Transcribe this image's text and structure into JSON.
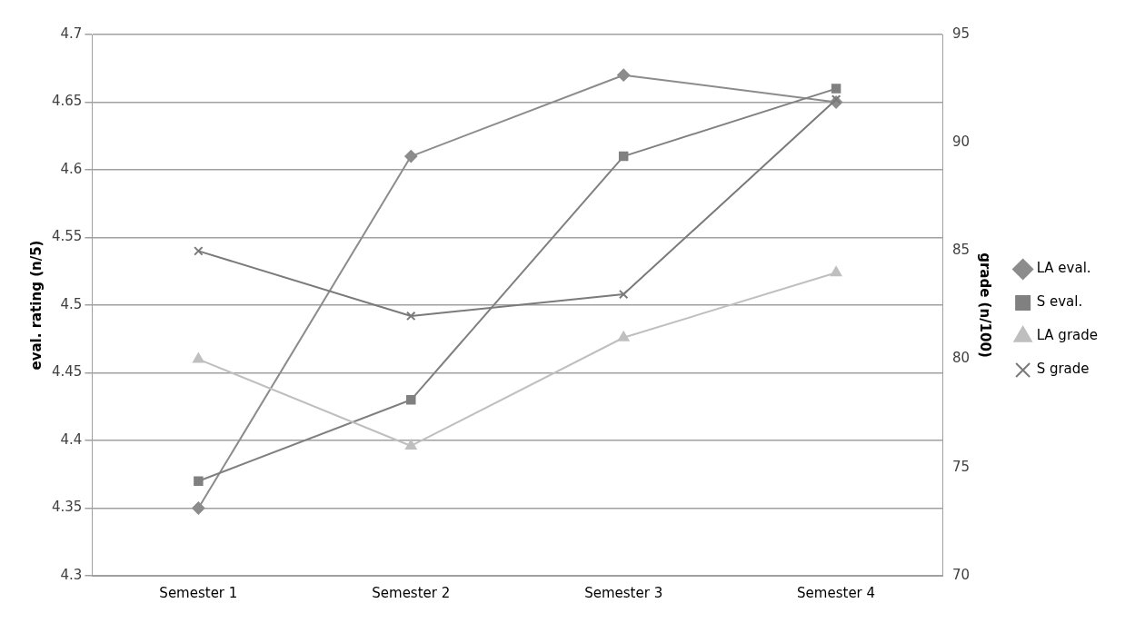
{
  "chart_data": {
    "type": "line",
    "categories": [
      "Semester 1",
      "Semester 2",
      "Semester 3",
      "Semester 4"
    ],
    "series": [
      {
        "name": "LA eval.",
        "color": "#8c8c8c",
        "marker": "diamond",
        "values": [
          4.35,
          4.61,
          4.67,
          4.65
        ]
      },
      {
        "name": "S eval.",
        "color": "#808080",
        "marker": "square",
        "values": [
          4.37,
          4.43,
          4.61,
          4.66
        ]
      },
      {
        "name": "LA grade",
        "color": "#bfbfbf",
        "marker": "triangle",
        "axis": "y2",
        "values": [
          80,
          76,
          81,
          84
        ]
      },
      {
        "name": "S grade",
        "color": "#7a7a7a",
        "marker": "cross",
        "axis": "y2",
        "values": [
          85,
          82,
          83,
          92
        ]
      }
    ],
    "ylabel": "eval. rating (n/5)",
    "y2label": "grade (n/100)",
    "ylim": [
      4.3,
      4.7
    ],
    "yticks": [
      4.3,
      4.35,
      4.4,
      4.45,
      4.5,
      4.55,
      4.6,
      4.65,
      4.7
    ],
    "y2lim": [
      70,
      95
    ],
    "y2ticks": [
      70,
      75,
      80,
      85,
      90,
      95
    ],
    "grid": "y",
    "legend": "right"
  }
}
